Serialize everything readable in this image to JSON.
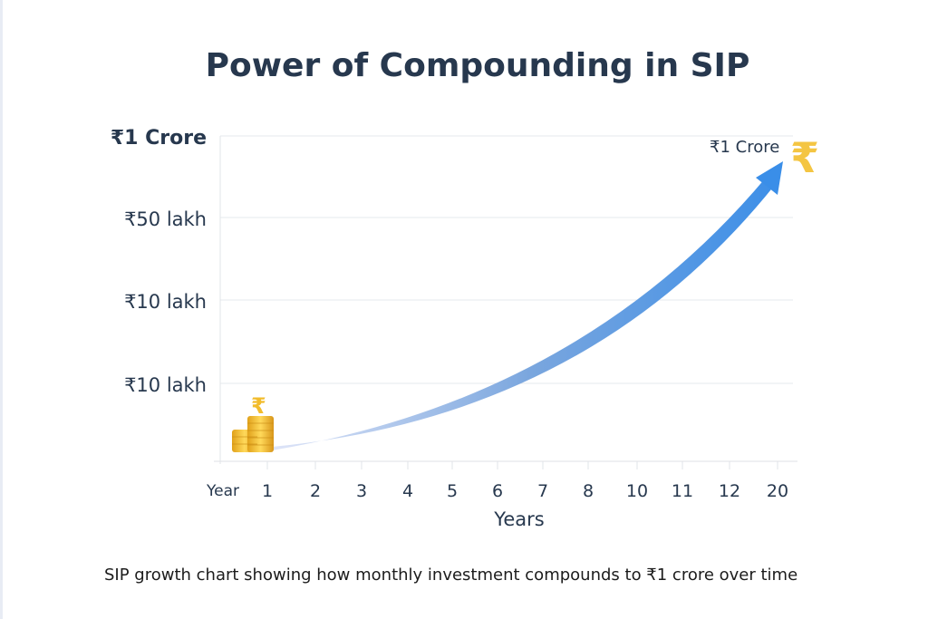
{
  "chart_data": {
    "type": "line",
    "title": "Power of Compounding in SIP",
    "xlabel": "Years",
    "ylabel": "",
    "x_axis_start_label": "Year",
    "categories": [
      "1",
      "2",
      "3",
      "4",
      "5",
      "6",
      "7",
      "8",
      "10",
      "11",
      "12",
      "20"
    ],
    "y_tick_labels": [
      "₹1 Crore",
      "₹50 lakh",
      "₹10 lakh",
      "₹10 lakh"
    ],
    "grid": true,
    "series": [
      {
        "style": "gradient arrow, light blue to blue",
        "start": {
          "x": "1",
          "y": "near 0"
        },
        "end": {
          "x": "20",
          "y": "₹1 Crore"
        }
      }
    ],
    "annotations": [
      {
        "text": "₹1 Crore",
        "at": "arrow end, top-right"
      }
    ],
    "icons": [
      "gold-coin-stack-rupee-icon",
      "gold-rupee-icon"
    ],
    "colors": {
      "arrow_start": "#d4dcf5",
      "arrow_end": "#3a8ee8",
      "gold": "#f2bc2c",
      "text": "#27384e"
    }
  },
  "caption": "SIP growth chart showing how monthly investment compounds to ₹1 crore over time"
}
